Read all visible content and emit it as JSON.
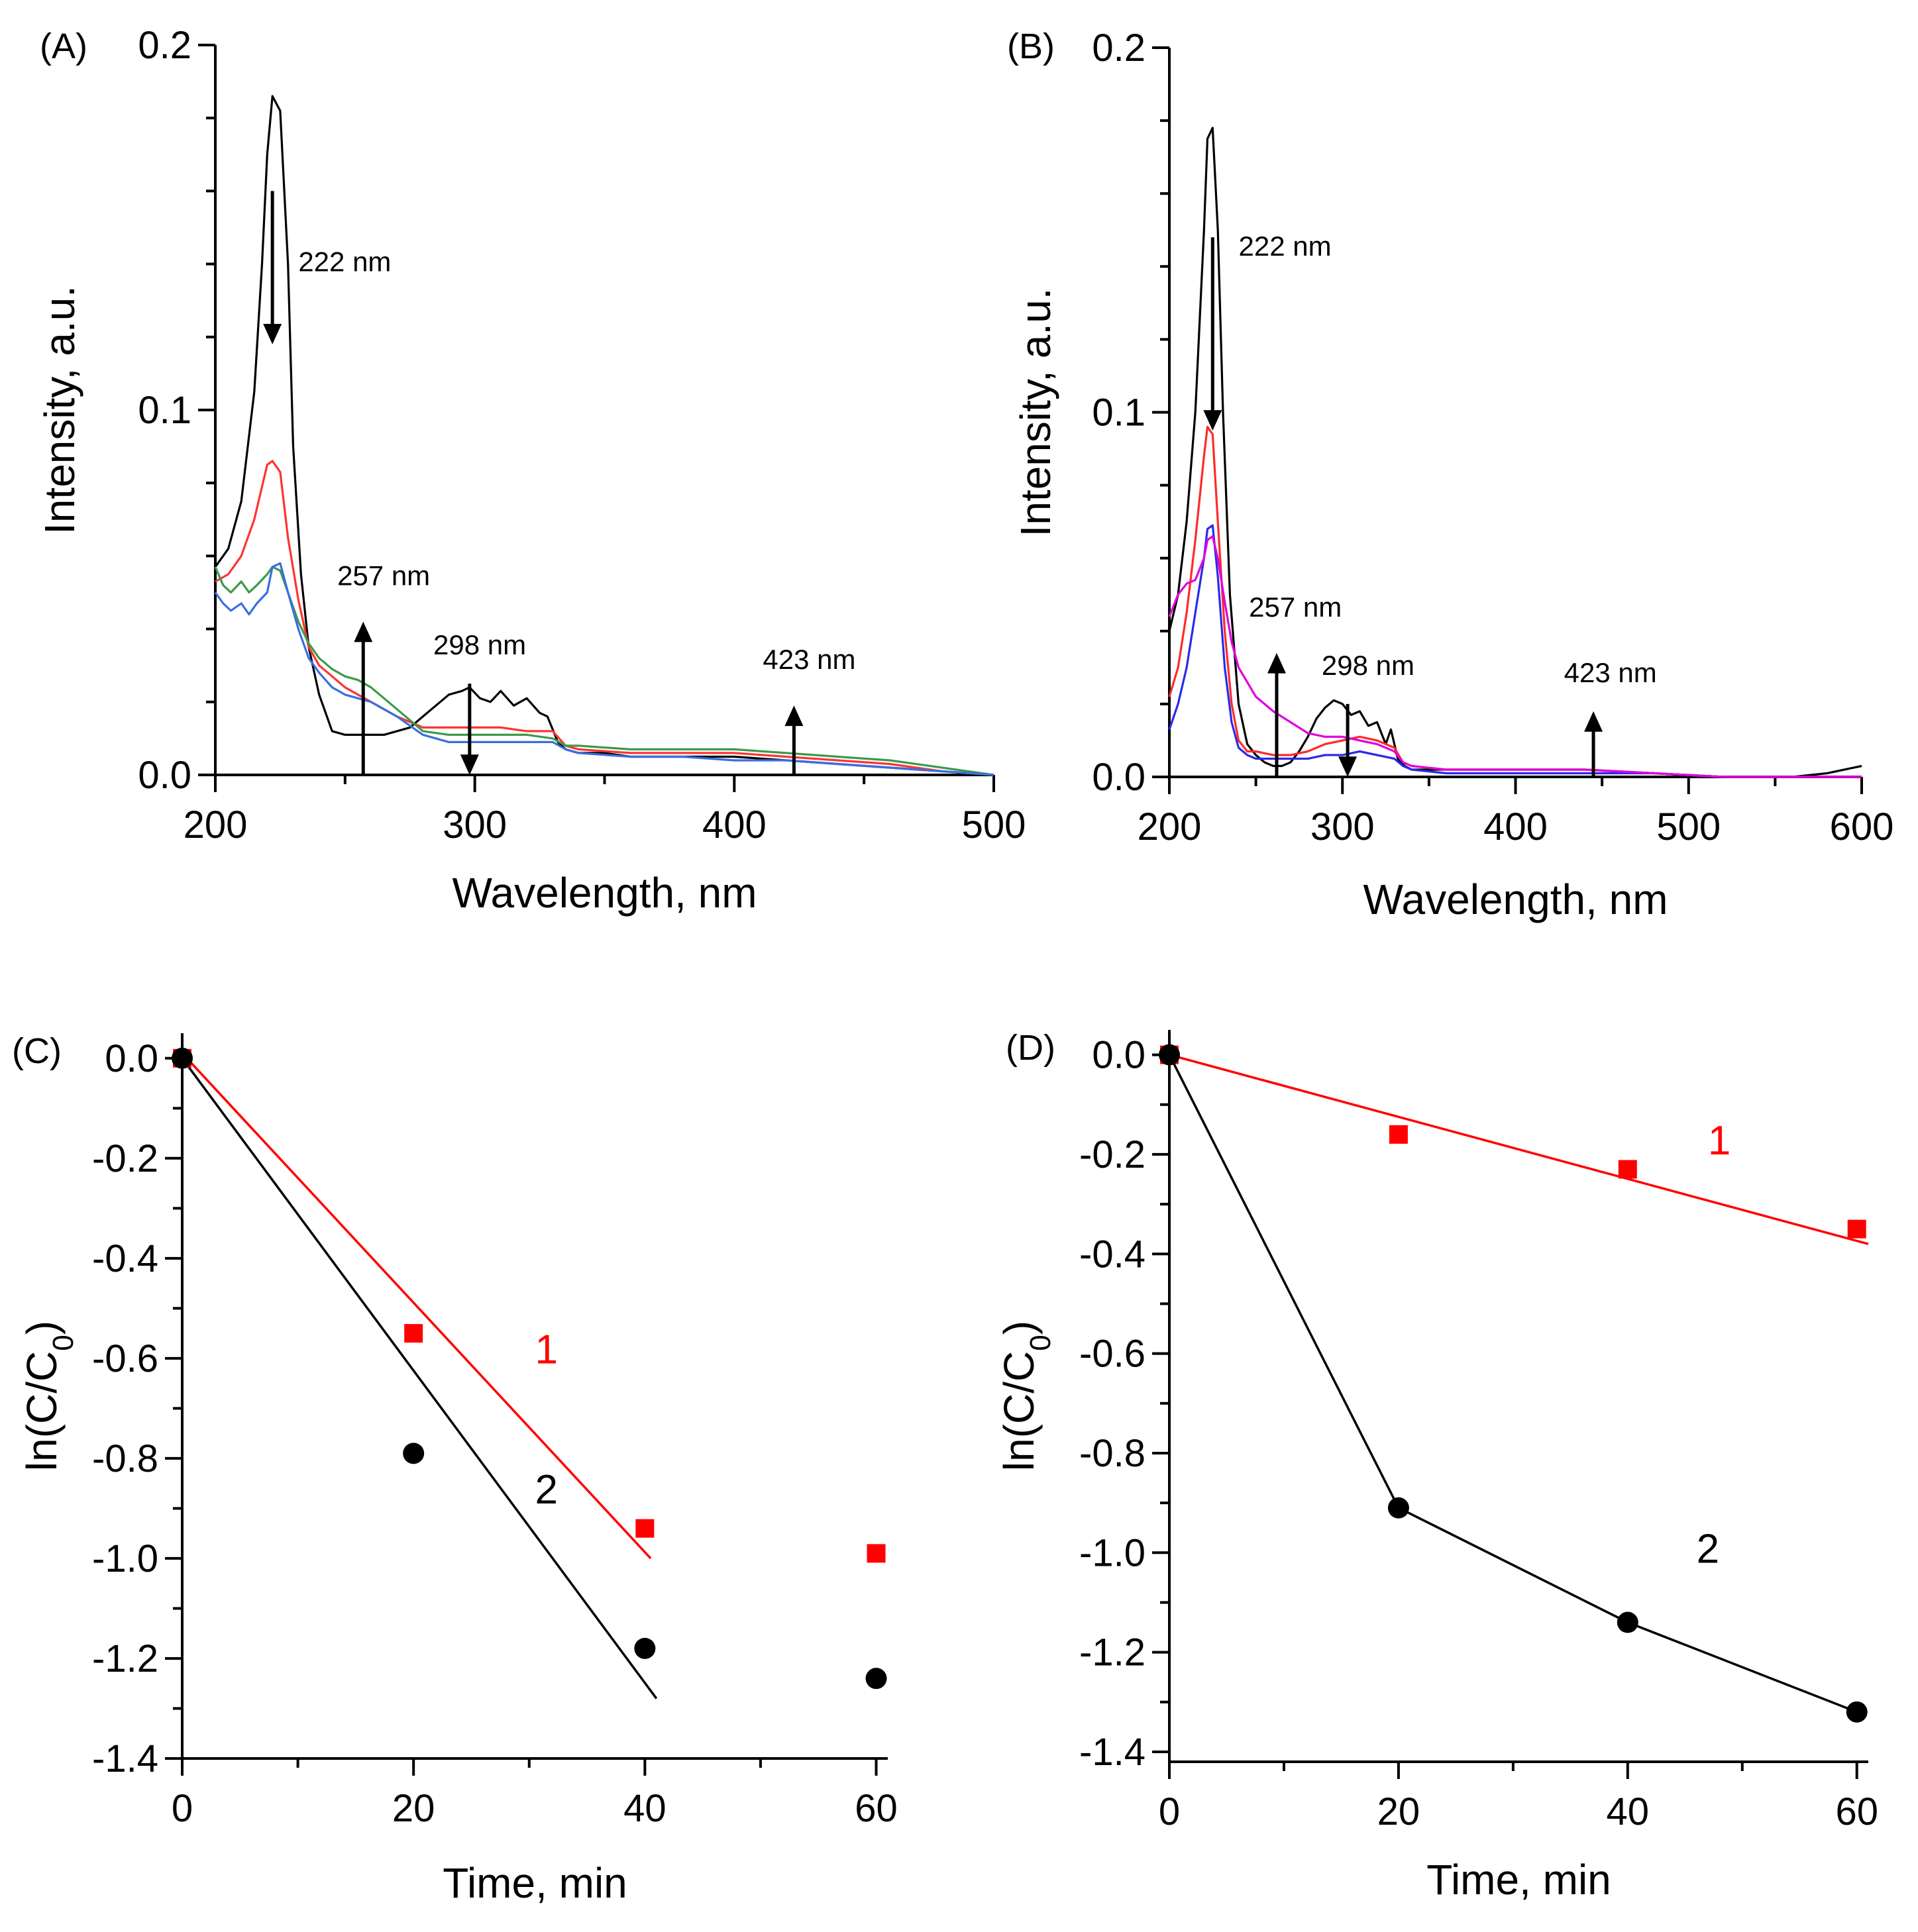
{
  "chart_data": [
    {
      "panel": "(A)",
      "type": "line",
      "xlabel": "Wavelength, nm",
      "ylabel": "Intensity, a.u.",
      "xlim": [
        200,
        500
      ],
      "ylim": [
        0,
        0.2
      ],
      "xticks": [
        200,
        300,
        400,
        500
      ],
      "xtick_labels": [
        "200",
        "300",
        "400",
        "500"
      ],
      "yticks": [
        0,
        0.1,
        0.2
      ],
      "ytick_labels": [
        "0.0",
        "0.1",
        "0.2"
      ],
      "series": [
        {
          "name": "black",
          "color": "#000000",
          "x": [
            200,
            205,
            210,
            215,
            218,
            220,
            222,
            225,
            228,
            230,
            233,
            236,
            240,
            245,
            250,
            255,
            260,
            265,
            270,
            275,
            280,
            285,
            290,
            295,
            298,
            302,
            306,
            310,
            315,
            320,
            325,
            328,
            332,
            335,
            340,
            350,
            360,
            380,
            400,
            420,
            440,
            460,
            480,
            500
          ],
          "y": [
            0.057,
            0.062,
            0.075,
            0.105,
            0.14,
            0.17,
            0.186,
            0.182,
            0.14,
            0.09,
            0.055,
            0.035,
            0.022,
            0.012,
            0.011,
            0.011,
            0.011,
            0.011,
            0.012,
            0.013,
            0.016,
            0.019,
            0.022,
            0.023,
            0.024,
            0.021,
            0.02,
            0.023,
            0.019,
            0.021,
            0.017,
            0.016,
            0.009,
            0.007,
            0.006,
            0.006,
            0.005,
            0.005,
            0.005,
            0.004,
            0.003,
            0.002,
            0.001,
            0.0
          ]
        },
        {
          "name": "red",
          "color": "#ff3333",
          "x": [
            200,
            205,
            210,
            215,
            220,
            222,
            225,
            228,
            232,
            236,
            240,
            245,
            250,
            255,
            260,
            270,
            280,
            290,
            300,
            310,
            320,
            330,
            335,
            340,
            360,
            380,
            400,
            420,
            440,
            460,
            480,
            500
          ],
          "y": [
            0.053,
            0.055,
            0.06,
            0.07,
            0.085,
            0.086,
            0.083,
            0.065,
            0.048,
            0.035,
            0.03,
            0.027,
            0.024,
            0.022,
            0.02,
            0.016,
            0.013,
            0.013,
            0.013,
            0.013,
            0.012,
            0.012,
            0.008,
            0.007,
            0.006,
            0.006,
            0.006,
            0.005,
            0.004,
            0.003,
            0.001,
            0.0
          ]
        },
        {
          "name": "green",
          "color": "#3a9a4a",
          "x": [
            200,
            203,
            206,
            210,
            213,
            216,
            220,
            222,
            225,
            228,
            232,
            236,
            240,
            245,
            250,
            255,
            260,
            270,
            280,
            290,
            300,
            310,
            320,
            330,
            335,
            340,
            360,
            380,
            400,
            420,
            440,
            460,
            480,
            500
          ],
          "y": [
            0.057,
            0.052,
            0.05,
            0.053,
            0.05,
            0.052,
            0.055,
            0.057,
            0.056,
            0.05,
            0.042,
            0.036,
            0.032,
            0.029,
            0.027,
            0.026,
            0.024,
            0.018,
            0.012,
            0.011,
            0.011,
            0.011,
            0.011,
            0.01,
            0.008,
            0.008,
            0.007,
            0.007,
            0.007,
            0.006,
            0.005,
            0.004,
            0.002,
            0.0
          ]
        },
        {
          "name": "blue",
          "color": "#3a6ee0",
          "x": [
            200,
            203,
            206,
            210,
            213,
            216,
            220,
            222,
            225,
            228,
            232,
            236,
            240,
            245,
            250,
            255,
            260,
            270,
            280,
            290,
            300,
            310,
            320,
            330,
            335,
            340,
            360,
            380,
            400,
            420,
            440,
            460,
            480,
            500
          ],
          "y": [
            0.05,
            0.047,
            0.045,
            0.047,
            0.044,
            0.047,
            0.05,
            0.057,
            0.058,
            0.05,
            0.04,
            0.032,
            0.028,
            0.024,
            0.022,
            0.021,
            0.02,
            0.016,
            0.011,
            0.009,
            0.009,
            0.009,
            0.009,
            0.009,
            0.007,
            0.006,
            0.005,
            0.005,
            0.004,
            0.004,
            0.003,
            0.002,
            0.001,
            0.0
          ]
        }
      ],
      "arrows": [
        {
          "x": 222,
          "y_from": 0.16,
          "y_to": 0.118,
          "dir": "down",
          "label": "222 nm",
          "label_x": 232,
          "label_y": 0.138
        },
        {
          "x": 257,
          "y_from": 0.0,
          "y_to": 0.042,
          "dir": "up",
          "label": "257 nm",
          "label_x": 247,
          "label_y": 0.052
        },
        {
          "x": 298,
          "y_from": 0.025,
          "y_to": 0.0,
          "dir": "down",
          "label": "298 nm",
          "label_x": 284,
          "label_y": 0.033
        },
        {
          "x": 423,
          "y_from": 0.0,
          "y_to": 0.019,
          "dir": "up",
          "label": "423 nm",
          "label_x": 411,
          "label_y": 0.029
        }
      ]
    },
    {
      "panel": "(B)",
      "type": "line",
      "xlabel": "Wavelength, nm",
      "ylabel": "Intensity, a.u.",
      "xlim": [
        200,
        600
      ],
      "ylim": [
        0,
        0.2
      ],
      "xticks": [
        200,
        300,
        400,
        500,
        600
      ],
      "xtick_labels": [
        "200",
        "300",
        "400",
        "500",
        "600"
      ],
      "yticks": [
        0,
        0.1,
        0.2
      ],
      "ytick_labels": [
        "0.0",
        "0.1",
        "0.2"
      ],
      "series": [
        {
          "name": "black",
          "color": "#000000",
          "x": [
            200,
            205,
            210,
            215,
            220,
            222,
            225,
            228,
            231,
            235,
            240,
            245,
            250,
            255,
            260,
            265,
            270,
            275,
            280,
            285,
            290,
            295,
            300,
            305,
            310,
            315,
            320,
            325,
            328,
            332,
            336,
            340,
            360,
            400,
            440,
            480,
            520,
            560,
            580,
            600
          ],
          "y": [
            0.04,
            0.05,
            0.07,
            0.1,
            0.15,
            0.175,
            0.178,
            0.15,
            0.1,
            0.05,
            0.02,
            0.009,
            0.006,
            0.004,
            0.003,
            0.003,
            0.004,
            0.007,
            0.011,
            0.016,
            0.019,
            0.021,
            0.02,
            0.017,
            0.018,
            0.014,
            0.015,
            0.009,
            0.013,
            0.005,
            0.003,
            0.002,
            0.002,
            0.002,
            0.002,
            0.001,
            0.0,
            0.0,
            0.001,
            0.003
          ]
        },
        {
          "name": "red",
          "color": "#ff2a2a",
          "x": [
            200,
            205,
            210,
            215,
            220,
            222,
            225,
            228,
            232,
            236,
            240,
            245,
            250,
            260,
            270,
            280,
            290,
            300,
            310,
            320,
            330,
            335,
            340,
            360,
            400,
            440,
            480,
            520,
            560,
            600
          ],
          "y": [
            0.022,
            0.03,
            0.045,
            0.065,
            0.088,
            0.096,
            0.094,
            0.07,
            0.04,
            0.02,
            0.01,
            0.007,
            0.007,
            0.006,
            0.006,
            0.007,
            0.009,
            0.01,
            0.011,
            0.01,
            0.008,
            0.004,
            0.003,
            0.002,
            0.002,
            0.002,
            0.001,
            0.0,
            0.0,
            0.0
          ]
        },
        {
          "name": "blue",
          "color": "#2a2ae8",
          "x": [
            200,
            205,
            210,
            215,
            220,
            222,
            225,
            228,
            232,
            236,
            240,
            245,
            250,
            260,
            270,
            280,
            290,
            300,
            310,
            320,
            330,
            335,
            340,
            360,
            400,
            440,
            480,
            520,
            560,
            600
          ],
          "y": [
            0.013,
            0.02,
            0.03,
            0.045,
            0.06,
            0.068,
            0.069,
            0.055,
            0.03,
            0.015,
            0.008,
            0.006,
            0.005,
            0.005,
            0.005,
            0.005,
            0.006,
            0.006,
            0.007,
            0.006,
            0.005,
            0.003,
            0.002,
            0.001,
            0.001,
            0.001,
            0.001,
            0.0,
            0.0,
            0.0
          ]
        },
        {
          "name": "magenta",
          "color": "#e000e0",
          "x": [
            200,
            205,
            210,
            215,
            220,
            222,
            225,
            228,
            232,
            236,
            240,
            245,
            250,
            255,
            260,
            270,
            280,
            290,
            300,
            310,
            320,
            330,
            335,
            340,
            360,
            400,
            440,
            480,
            520,
            560,
            600
          ],
          "y": [
            0.044,
            0.05,
            0.053,
            0.054,
            0.06,
            0.065,
            0.066,
            0.06,
            0.048,
            0.037,
            0.03,
            0.026,
            0.022,
            0.02,
            0.018,
            0.015,
            0.012,
            0.011,
            0.011,
            0.01,
            0.009,
            0.007,
            0.004,
            0.003,
            0.002,
            0.002,
            0.002,
            0.001,
            0.0,
            0.0,
            0.0
          ]
        }
      ],
      "arrows": [
        {
          "x": 225,
          "y_from": 0.148,
          "y_to": 0.095,
          "dir": "down",
          "label": "222 nm",
          "label_x": 240,
          "label_y": 0.143
        },
        {
          "x": 262,
          "y_from": 0.0,
          "y_to": 0.034,
          "dir": "up",
          "label": "257 nm",
          "label_x": 246,
          "label_y": 0.044
        },
        {
          "x": 303,
          "y_from": 0.02,
          "y_to": 0.0,
          "dir": "down",
          "label": "298 nm",
          "label_x": 288,
          "label_y": 0.028
        },
        {
          "x": 445,
          "y_from": 0.0,
          "y_to": 0.018,
          "dir": "up",
          "label": "423 nm",
          "label_x": 428,
          "label_y": 0.026
        }
      ]
    },
    {
      "panel": "(C)",
      "type": "scatter",
      "xlabel": "Time, min",
      "ylabel": "ln(C/C0)",
      "ylabel_main": "ln(C/C",
      "ylabel_sub": "0",
      "ylabel_close": ")",
      "xlim": [
        0,
        61
      ],
      "ylim": [
        -1.4,
        0.05
      ],
      "xticks": [
        0,
        20,
        40,
        60
      ],
      "xtick_labels": [
        "0",
        "20",
        "40",
        "60"
      ],
      "yticks": [
        0.0,
        -0.2,
        -0.4,
        -0.6,
        -0.8,
        -1.0,
        -1.2,
        -1.4
      ],
      "ytick_labels": [
        "0.0",
        "-0.2",
        "-0.4",
        "-0.6",
        "-0.8",
        "-1.0",
        "-1.2",
        "-1.4"
      ],
      "series": [
        {
          "name": "1",
          "color": "#ff0000",
          "marker": "square",
          "x": [
            0,
            20,
            40,
            60
          ],
          "y": [
            0.0,
            -0.55,
            -0.94,
            -0.99
          ]
        },
        {
          "name": "2",
          "color": "#000000",
          "marker": "circle",
          "x": [
            0,
            20,
            40,
            60
          ],
          "y": [
            0.0,
            -0.79,
            -1.18,
            -1.24
          ]
        }
      ],
      "fits": [
        {
          "name": "1",
          "color": "#ff0000",
          "x": [
            0,
            40.5
          ],
          "y": [
            0.01,
            -1.0
          ]
        },
        {
          "name": "2",
          "color": "#000000",
          "x": [
            0,
            41
          ],
          "y": [
            0.0,
            -1.28
          ]
        }
      ],
      "labels": [
        {
          "text": "1",
          "color": "#ff0000",
          "x": 30.5,
          "y": -0.61
        },
        {
          "text": "2",
          "color": "#000000",
          "x": 30.5,
          "y": -0.89
        }
      ]
    },
    {
      "panel": "(D)",
      "type": "scatter",
      "xlabel": "Time, min",
      "ylabel": "ln(C/C0)",
      "ylabel_main": "ln(C/C",
      "ylabel_sub": "0",
      "ylabel_close": ")",
      "xlim": [
        0,
        61
      ],
      "ylim": [
        -1.42,
        0.05
      ],
      "xticks": [
        0,
        20,
        40,
        60
      ],
      "xtick_labels": [
        "0",
        "20",
        "40",
        "60"
      ],
      "yticks": [
        0.0,
        -0.2,
        -0.4,
        -0.6,
        -0.8,
        -1.0,
        -1.2,
        -1.4
      ],
      "ytick_labels": [
        "0.0",
        "-0.2",
        "-0.4",
        "-0.6",
        "-0.8",
        "-1.0",
        "-1.2",
        "-1.4"
      ],
      "series": [
        {
          "name": "1",
          "color": "#ff0000",
          "marker": "square",
          "x": [
            0,
            20,
            40,
            60
          ],
          "y": [
            0.0,
            -0.16,
            -0.23,
            -0.35
          ]
        },
        {
          "name": "2",
          "color": "#000000",
          "marker": "circle",
          "x": [
            0,
            20,
            40,
            60
          ],
          "y": [
            0.0,
            -0.91,
            -1.14,
            -1.32
          ]
        }
      ],
      "fits": [
        {
          "name": "1",
          "color": "#ff0000",
          "x": [
            0,
            61
          ],
          "y": [
            0.0,
            -0.38
          ]
        },
        {
          "name": "2",
          "color": "#000000",
          "x": [
            0,
            20,
            40,
            60
          ],
          "y": [
            0.0,
            -0.91,
            -1.14,
            -1.32
          ]
        }
      ],
      "labels": [
        {
          "text": "1",
          "color": "#ff0000",
          "x": 47,
          "y": -0.2
        },
        {
          "text": "2",
          "color": "#000000",
          "x": 46,
          "y": -1.02
        }
      ]
    }
  ]
}
